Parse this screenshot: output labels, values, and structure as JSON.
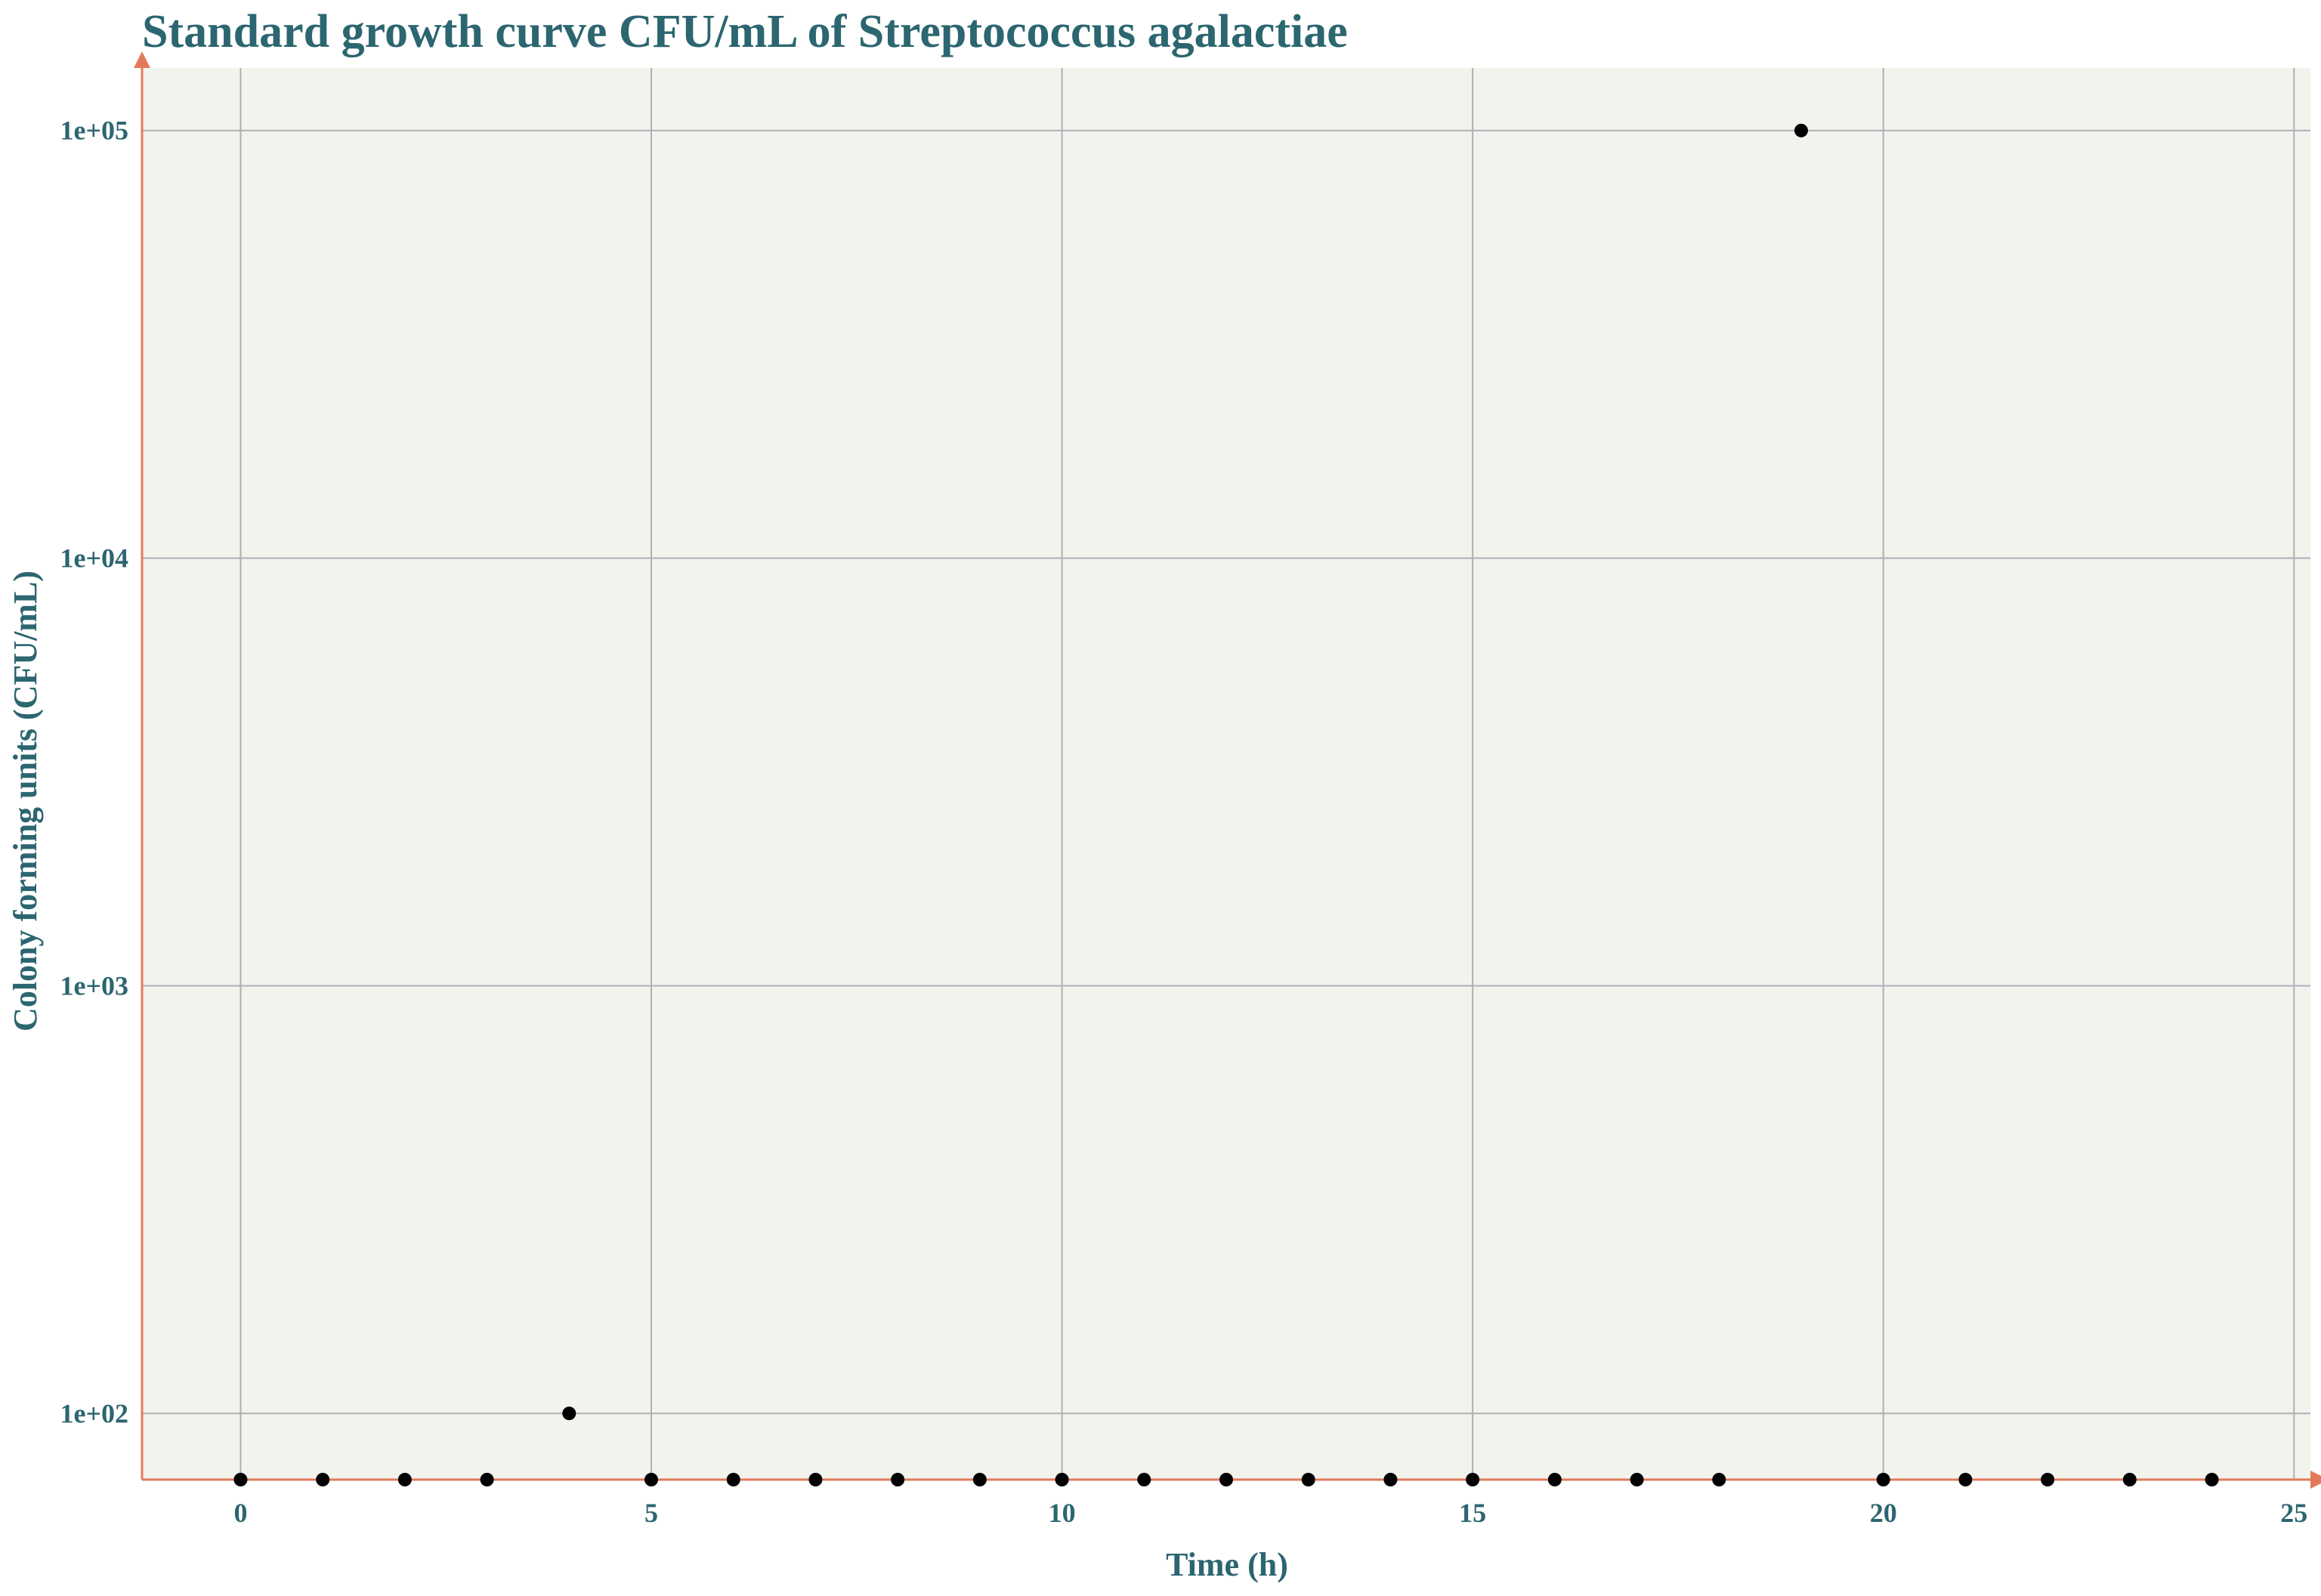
{
  "chart_data": {
    "type": "scatter",
    "title": "Standard growth curve CFU/mL of Streptococcus agalactiae",
    "xlabel": "Time (h)",
    "ylabel": "Colony forming units (CFU/mL)",
    "xlim": [
      -1.2,
      25.2
    ],
    "ylim": [
      70,
      140000
    ],
    "y_scale": "log",
    "grid": true,
    "x_ticks": [
      0,
      5,
      10,
      15,
      20,
      25
    ],
    "x_tick_labels": [
      "0",
      "5",
      "10",
      "15",
      "20",
      "25"
    ],
    "y_ticks": [
      100,
      1000,
      10000,
      100000
    ],
    "y_tick_labels": [
      "1e+02",
      "1e+03",
      "1e+04",
      "1e+05"
    ],
    "points": [
      {
        "x": 0,
        "y": 70
      },
      {
        "x": 1,
        "y": 70
      },
      {
        "x": 2,
        "y": 70
      },
      {
        "x": 3,
        "y": 70
      },
      {
        "x": 4,
        "y": 100
      },
      {
        "x": 5,
        "y": 70
      },
      {
        "x": 6,
        "y": 70
      },
      {
        "x": 7,
        "y": 70
      },
      {
        "x": 8,
        "y": 70
      },
      {
        "x": 9,
        "y": 70
      },
      {
        "x": 10,
        "y": 70
      },
      {
        "x": 11,
        "y": 70
      },
      {
        "x": 12,
        "y": 70
      },
      {
        "x": 13,
        "y": 70
      },
      {
        "x": 14,
        "y": 70
      },
      {
        "x": 15,
        "y": 70
      },
      {
        "x": 16,
        "y": 70
      },
      {
        "x": 17,
        "y": 70
      },
      {
        "x": 18,
        "y": 70
      },
      {
        "x": 19,
        "y": 100000
      },
      {
        "x": 20,
        "y": 70
      },
      {
        "x": 21,
        "y": 70
      },
      {
        "x": 22,
        "y": 70
      },
      {
        "x": 23,
        "y": 70
      },
      {
        "x": 24,
        "y": 70
      }
    ],
    "colors": {
      "panel_background": "#f3f3ee",
      "grid": "#aab0b5",
      "axis": "#e27a5a",
      "text": "#2c6670",
      "point": "#000000"
    }
  }
}
